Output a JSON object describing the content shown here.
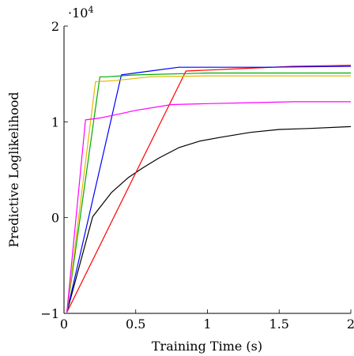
{
  "chart_data": {
    "type": "line",
    "xlabel": "Training Time (s)",
    "ylabel": "Predictive Loglikelihood",
    "scale_label": "·10",
    "scale_exponent": "4",
    "xlim": [
      0,
      2
    ],
    "ylim": [
      -1,
      2
    ],
    "xticks": [
      0,
      0.5,
      1,
      1.5,
      2
    ],
    "xtick_labels": [
      "0",
      "0.5",
      "1",
      "1.5",
      "2"
    ],
    "yticks": [
      -1,
      0,
      1,
      2
    ],
    "ytick_labels": [
      "−1",
      "0",
      "1",
      "2"
    ],
    "grid": false,
    "legend": "none",
    "series": [
      {
        "color": "#000000",
        "x": [
          0.02,
          0.2,
          0.33,
          0.45,
          0.55,
          0.66,
          0.8,
          0.95,
          1.1,
          1.3,
          1.5,
          1.7,
          2.0
        ],
        "y": [
          -0.99,
          0.01,
          0.26,
          0.42,
          0.52,
          0.62,
          0.73,
          0.8,
          0.84,
          0.89,
          0.92,
          0.93,
          0.95
        ]
      },
      {
        "color": "#ff0000",
        "x": [
          0.02,
          0.85,
          1.0,
          1.3,
          1.6,
          2.0
        ],
        "y": [
          -0.99,
          1.53,
          1.54,
          1.56,
          1.58,
          1.59
        ]
      },
      {
        "color": "#0000ff",
        "x": [
          0.02,
          0.4,
          0.6,
          0.8,
          1.0,
          1.4,
          2.0
        ],
        "y": [
          -0.99,
          1.49,
          1.53,
          1.57,
          1.57,
          1.57,
          1.58
        ]
      },
      {
        "color": "#00aa00",
        "x": [
          0.02,
          0.25,
          0.3,
          0.5,
          1.0,
          2.0
        ],
        "y": [
          -0.99,
          1.47,
          1.47,
          1.49,
          1.51,
          1.51
        ]
      },
      {
        "color": "#e6b800",
        "x": [
          0.02,
          0.22,
          0.35,
          0.6,
          1.0,
          2.0
        ],
        "y": [
          -0.99,
          1.42,
          1.43,
          1.47,
          1.48,
          1.48
        ]
      },
      {
        "color": "#ff00ff",
        "x": [
          0.02,
          0.15,
          0.25,
          0.35,
          0.5,
          0.75,
          1.0,
          1.3,
          1.6,
          2.0
        ],
        "y": [
          -0.99,
          1.02,
          1.04,
          1.07,
          1.12,
          1.18,
          1.19,
          1.2,
          1.21,
          1.21
        ]
      }
    ]
  }
}
